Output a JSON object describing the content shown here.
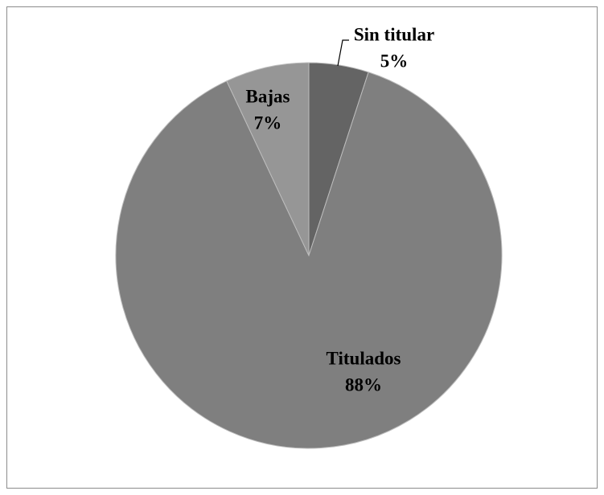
{
  "chart_data": {
    "type": "pie",
    "categories": [
      "Sin titular",
      "Titulados",
      "Bajas"
    ],
    "values": [
      5,
      88,
      7
    ],
    "value_labels": [
      "5%",
      "88%",
      "7%"
    ],
    "colors": [
      "#646464",
      "#7f7f7f",
      "#969696"
    ]
  }
}
